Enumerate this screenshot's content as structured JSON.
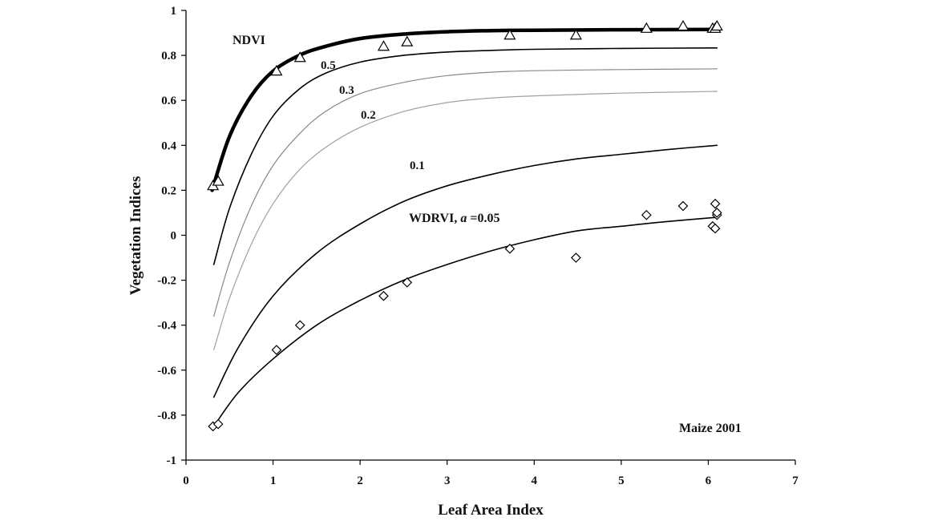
{
  "chart_data": {
    "type": "scatter",
    "title": "",
    "xlabel": "Leaf Area Index",
    "ylabel": "Vegetation Indices",
    "xlim": [
      0,
      7
    ],
    "ylim": [
      -1,
      1
    ],
    "x_ticks": [
      "0",
      "1",
      "2",
      "3",
      "4",
      "5",
      "6",
      "7"
    ],
    "y_ticks": [
      "-1",
      "-0.8",
      "-0.6",
      "-0.4",
      "-0.2",
      "0",
      "0.2",
      "0.4",
      "0.6",
      "0.8",
      "1"
    ],
    "grid": false,
    "legend": "none",
    "annotations": [
      "NDVI",
      "0.5",
      "0.3",
      "0.2",
      "0.1",
      "WDRVI, a =0.05",
      "Maize 2001"
    ],
    "series": [
      {
        "name": "NDVI",
        "kind": "scatter",
        "marker": "triangle",
        "x": [
          0.31,
          0.37,
          1.04,
          1.31,
          2.27,
          2.54,
          3.72,
          4.48,
          5.29,
          5.71,
          6.05,
          6.08,
          6.1
        ],
        "y": [
          0.22,
          0.24,
          0.73,
          0.79,
          0.84,
          0.86,
          0.89,
          0.89,
          0.92,
          0.93,
          0.92,
          0.92,
          0.93
        ]
      },
      {
        "name": "WDRVI, a =0.05",
        "kind": "scatter",
        "marker": "diamond",
        "x": [
          0.31,
          0.37,
          1.04,
          1.31,
          2.27,
          2.54,
          3.72,
          4.48,
          5.29,
          5.71,
          6.05,
          6.08,
          6.1,
          6.08,
          6.1
        ],
        "y": [
          -0.85,
          -0.84,
          -0.51,
          -0.4,
          -0.27,
          -0.21,
          -0.06,
          -0.1,
          0.09,
          0.13,
          0.04,
          0.03,
          0.09,
          0.14,
          0.1
        ]
      },
      {
        "name": "NDVI",
        "kind": "line",
        "stroke": "#000000",
        "width": 4.5,
        "x": [
          0.3,
          0.5,
          0.75,
          1.0,
          1.3,
          1.6,
          2.0,
          2.5,
          3.0,
          3.5,
          4.0,
          5.0,
          6.1
        ],
        "y": [
          0.2,
          0.44,
          0.62,
          0.73,
          0.8,
          0.84,
          0.875,
          0.895,
          0.905,
          0.91,
          0.912,
          0.914,
          0.915
        ]
      },
      {
        "name": "0.5",
        "kind": "line",
        "stroke": "#000000",
        "width": 1.6,
        "x": [
          0.32,
          0.5,
          0.75,
          1.0,
          1.3,
          1.6,
          2.0,
          2.5,
          3.0,
          3.5,
          4.0,
          5.0,
          6.1
        ],
        "y": [
          -0.13,
          0.12,
          0.36,
          0.53,
          0.65,
          0.72,
          0.77,
          0.8,
          0.815,
          0.822,
          0.827,
          0.831,
          0.833
        ]
      },
      {
        "name": "0.3",
        "kind": "line",
        "stroke": "#888888",
        "width": 1.2,
        "x": [
          0.32,
          0.5,
          0.75,
          1.0,
          1.3,
          1.6,
          2.0,
          2.5,
          3.0,
          3.5,
          4.0,
          5.0,
          6.1
        ],
        "y": [
          -0.36,
          -0.12,
          0.13,
          0.31,
          0.45,
          0.55,
          0.63,
          0.68,
          0.71,
          0.725,
          0.732,
          0.737,
          0.74
        ]
      },
      {
        "name": "0.2",
        "kind": "line",
        "stroke": "#a0a0a0",
        "width": 1.2,
        "x": [
          0.32,
          0.5,
          0.75,
          1.0,
          1.3,
          1.6,
          2.0,
          2.5,
          3.0,
          3.5,
          4.0,
          5.0,
          6.1
        ],
        "y": [
          -0.51,
          -0.28,
          -0.04,
          0.14,
          0.29,
          0.39,
          0.48,
          0.55,
          0.59,
          0.61,
          0.62,
          0.632,
          0.64
        ]
      },
      {
        "name": "0.1",
        "kind": "line",
        "stroke": "#000000",
        "width": 1.6,
        "x": [
          0.32,
          0.6,
          1.0,
          1.5,
          2.0,
          2.5,
          3.0,
          3.5,
          4.0,
          4.5,
          5.0,
          5.5,
          6.1
        ],
        "y": [
          -0.72,
          -0.5,
          -0.27,
          -0.08,
          0.05,
          0.15,
          0.22,
          0.27,
          0.31,
          0.34,
          0.36,
          0.38,
          0.4
        ]
      },
      {
        "name": "WDRVI, a =0.05",
        "kind": "line",
        "stroke": "#000000",
        "width": 1.6,
        "x": [
          0.32,
          0.6,
          1.0,
          1.5,
          2.0,
          2.5,
          3.0,
          3.5,
          4.0,
          4.5,
          5.0,
          5.5,
          6.1
        ],
        "y": [
          -0.85,
          -0.7,
          -0.55,
          -0.4,
          -0.29,
          -0.2,
          -0.13,
          -0.07,
          -0.02,
          0.02,
          0.04,
          0.06,
          0.08
        ]
      }
    ]
  }
}
